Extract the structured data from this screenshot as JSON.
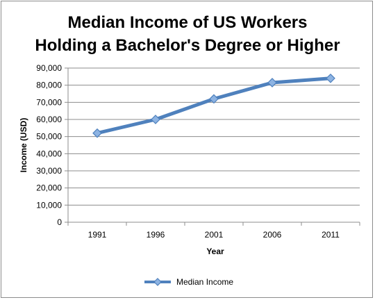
{
  "chart_data": {
    "type": "line",
    "title_lines": [
      "Median Income of US Workers",
      "Holding a Bachelor's Degree or Higher"
    ],
    "xlabel": "Year",
    "ylabel": "Income (USD)",
    "categories": [
      "1991",
      "1996",
      "2001",
      "2006",
      "2011"
    ],
    "series": [
      {
        "name": "Median Income",
        "values": [
          52000,
          60000,
          72000,
          81500,
          84000
        ],
        "color": "#4f81bd"
      }
    ],
    "ylim": [
      0,
      90000
    ],
    "yticks": [
      0,
      10000,
      20000,
      30000,
      40000,
      50000,
      60000,
      70000,
      80000,
      90000
    ],
    "ytick_labels": [
      "0",
      "10,000",
      "20,000",
      "30,000",
      "40,000",
      "50,000",
      "60,000",
      "70,000",
      "80,000",
      "90,000"
    ],
    "grid": true,
    "legend_position": "bottom",
    "marker": "diamond"
  }
}
